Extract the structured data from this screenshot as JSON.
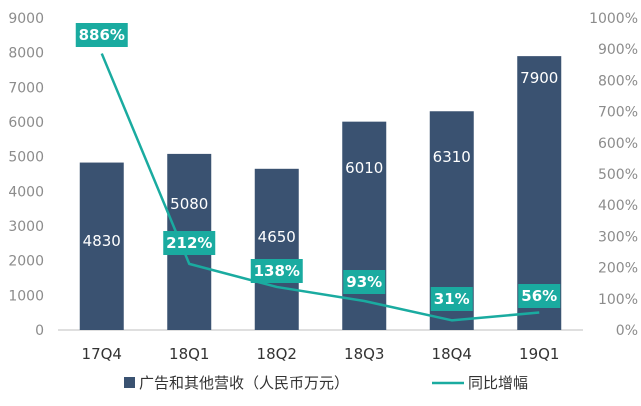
{
  "chart_data": {
    "type": "bar",
    "categories": [
      "17Q4",
      "18Q1",
      "18Q2",
      "18Q3",
      "18Q4",
      "19Q1"
    ],
    "series": [
      {
        "name": "广告和其他营收（人民币万元）",
        "type": "bar",
        "axis": "left",
        "values": [
          4830,
          5080,
          4650,
          6010,
          6310,
          7900
        ],
        "labels": [
          "4830",
          "5080",
          "4650",
          "6010",
          "6310",
          "7900"
        ],
        "color": "#3a5271"
      },
      {
        "name": "同比增幅",
        "type": "line",
        "axis": "right",
        "values": [
          886,
          212,
          138,
          93,
          31,
          56
        ],
        "labels": [
          "886%",
          "212%",
          "138%",
          "93%",
          "31%",
          "56%"
        ],
        "color": "#1aaba0"
      }
    ],
    "y_left": {
      "min": 0,
      "max": 9000,
      "step": 1000,
      "tick_labels": [
        "0",
        "1000",
        "2000",
        "3000",
        "4000",
        "5000",
        "6000",
        "7000",
        "8000",
        "9000"
      ]
    },
    "y_right": {
      "min": 0,
      "max": 1000,
      "step": 100,
      "tick_labels": [
        "0%",
        "100%",
        "200%",
        "300%",
        "400%",
        "500%",
        "600%",
        "700%",
        "800%",
        "900%",
        "1000%"
      ]
    },
    "grid": false,
    "legend_position": "bottom"
  },
  "colors": {
    "bar": "#3a5271",
    "line": "#1aaba0",
    "label_box": "#1aaba0",
    "axis": "#bfbfbf"
  }
}
